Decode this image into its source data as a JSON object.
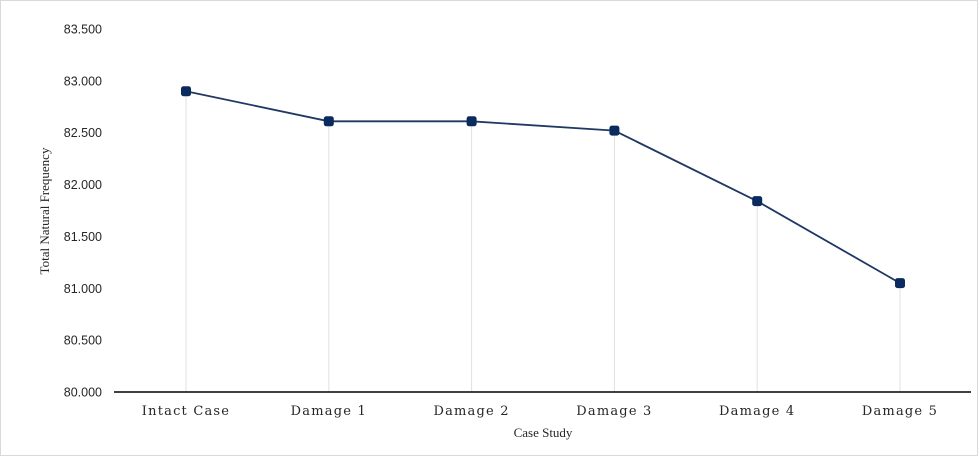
{
  "chart_data": {
    "type": "line",
    "title": "",
    "xlabel": "Case Study",
    "ylabel": "Total Natural Frequency",
    "categories": [
      "Intact Case",
      "Damage 1",
      "Damage 2",
      "Damage 3",
      "Damage 4",
      "Damage 5"
    ],
    "series": [
      {
        "values": [
          82.9,
          82.61,
          82.61,
          82.52,
          81.84,
          81.05
        ]
      }
    ],
    "ylim": [
      80.0,
      83.5
    ],
    "yticks": [
      "80.000",
      "80.500",
      "81.000",
      "81.500",
      "82.000",
      "82.500",
      "83.000",
      "83.500"
    ],
    "ytick_values": [
      80.0,
      80.5,
      81.0,
      81.5,
      82.0,
      82.5,
      83.0,
      83.5
    ],
    "grid": "vertical drop lines from points",
    "legend": "none",
    "colors": {
      "series_line": "#1f3864",
      "marker": "#0b2a5e",
      "drop_line": "#e0e0e0",
      "axis": "#000000"
    }
  }
}
